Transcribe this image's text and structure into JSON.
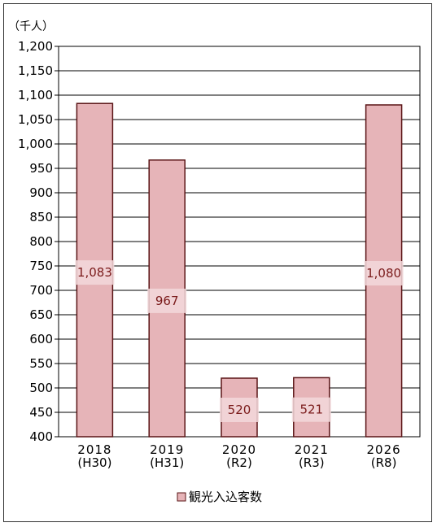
{
  "chart_data": {
    "type": "bar",
    "unit_label": "（千人）",
    "categories": [
      {
        "year": "2018",
        "era": "(H30)"
      },
      {
        "year": "2019",
        "era": "(H31)"
      },
      {
        "year": "2020",
        "era": "(R2)"
      },
      {
        "year": "2021",
        "era": "(R3)"
      },
      {
        "year": "2026",
        "era": "(R8)"
      }
    ],
    "series": [
      {
        "name": "観光入込客数",
        "values": [
          1083,
          967,
          520,
          521,
          1080
        ],
        "labels": [
          "1,083",
          "967",
          "520",
          "521",
          "1,080"
        ]
      }
    ],
    "ylim": [
      400,
      1200
    ],
    "yticks": [
      400,
      450,
      500,
      550,
      600,
      650,
      700,
      750,
      800,
      850,
      900,
      950,
      1000,
      1050,
      1100,
      1150,
      1200
    ],
    "ytick_labels": [
      "400",
      "450",
      "500",
      "550",
      "600",
      "650",
      "700",
      "750",
      "800",
      "850",
      "900",
      "950",
      "1,000",
      "1,050",
      "1,100",
      "1,150",
      "1,200"
    ],
    "grid": true,
    "legend_position": "bottom",
    "colors": {
      "bar_fill": "#e6b4b8",
      "bar_stroke": "#5a1416",
      "grid": "#000000",
      "label_bg": "#f2d8da"
    }
  }
}
